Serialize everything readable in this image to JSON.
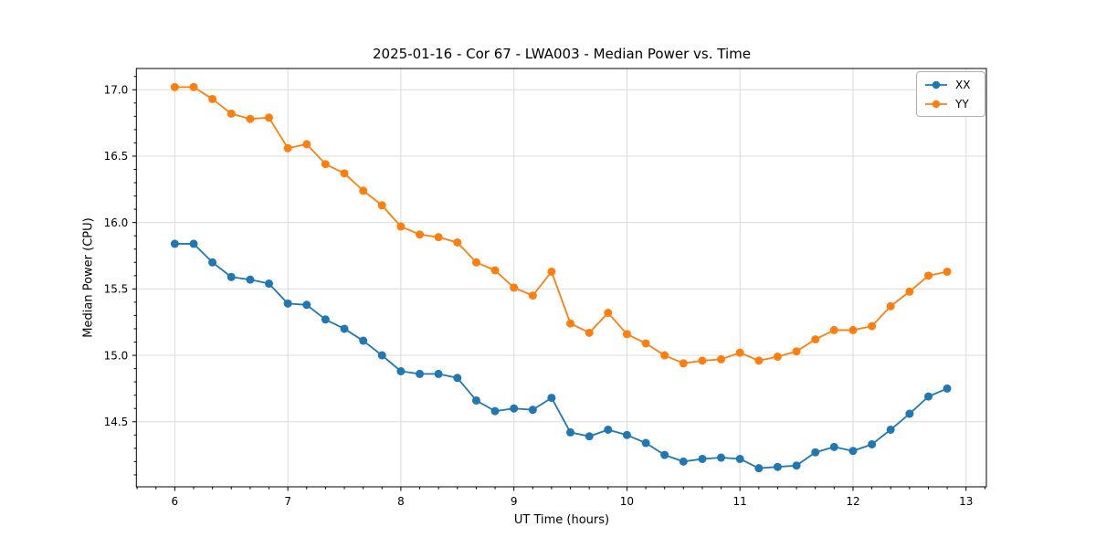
{
  "figure": {
    "title": "2025-01-16 - Cor 67 - LWA003 - Median Power vs. Time"
  },
  "chart_data": {
    "type": "line",
    "title": "2025-01-16 - Cor 67 - LWA003 - Median Power vs. Time",
    "xlabel": "UT Time (hours)",
    "ylabel": "Median Power (CPU)",
    "xlim": [
      5.66,
      13.18
    ],
    "ylim": [
      14.01,
      17.16
    ],
    "x_ticks": [
      6,
      7,
      8,
      9,
      10,
      11,
      12,
      13
    ],
    "y_ticks": [
      14.5,
      15.0,
      15.5,
      16.0,
      16.5,
      17.0
    ],
    "x_minor_step": 0.16667,
    "y_minor_step": 0.1,
    "grid": true,
    "legend_position": "upper right",
    "x": [
      6.0,
      6.167,
      6.333,
      6.5,
      6.667,
      6.833,
      7.0,
      7.167,
      7.333,
      7.5,
      7.667,
      7.833,
      8.0,
      8.167,
      8.333,
      8.5,
      8.667,
      8.833,
      9.0,
      9.167,
      9.333,
      9.5,
      9.667,
      9.833,
      10.0,
      10.167,
      10.333,
      10.5,
      10.667,
      10.833,
      11.0,
      11.167,
      11.333,
      11.5,
      11.667,
      11.833,
      12.0,
      12.167,
      12.333,
      12.5,
      12.667,
      12.833
    ],
    "series": [
      {
        "name": "XX",
        "color": "#1f77b4",
        "values": [
          15.84,
          15.84,
          15.7,
          15.59,
          15.57,
          15.54,
          15.39,
          15.38,
          15.27,
          15.2,
          15.11,
          15.0,
          14.88,
          14.86,
          14.86,
          14.83,
          14.66,
          14.58,
          14.6,
          14.59,
          14.68,
          14.42,
          14.39,
          14.44,
          14.4,
          14.34,
          14.25,
          14.2,
          14.22,
          14.23,
          14.22,
          14.15,
          14.16,
          14.17,
          14.27,
          14.31,
          14.28,
          14.33,
          14.44,
          14.56,
          14.69,
          14.75
        ]
      },
      {
        "name": "YY",
        "color": "#ff7f0e",
        "values": [
          17.02,
          17.02,
          16.93,
          16.82,
          16.78,
          16.79,
          16.56,
          16.59,
          16.44,
          16.37,
          16.24,
          16.13,
          15.97,
          15.91,
          15.89,
          15.85,
          15.7,
          15.64,
          15.51,
          15.45,
          15.63,
          15.24,
          15.17,
          15.32,
          15.16,
          15.09,
          15.0,
          14.94,
          14.96,
          14.97,
          15.02,
          14.96,
          14.99,
          15.03,
          15.12,
          15.19,
          15.19,
          15.22,
          15.37,
          15.48,
          15.6,
          15.63
        ]
      }
    ]
  }
}
